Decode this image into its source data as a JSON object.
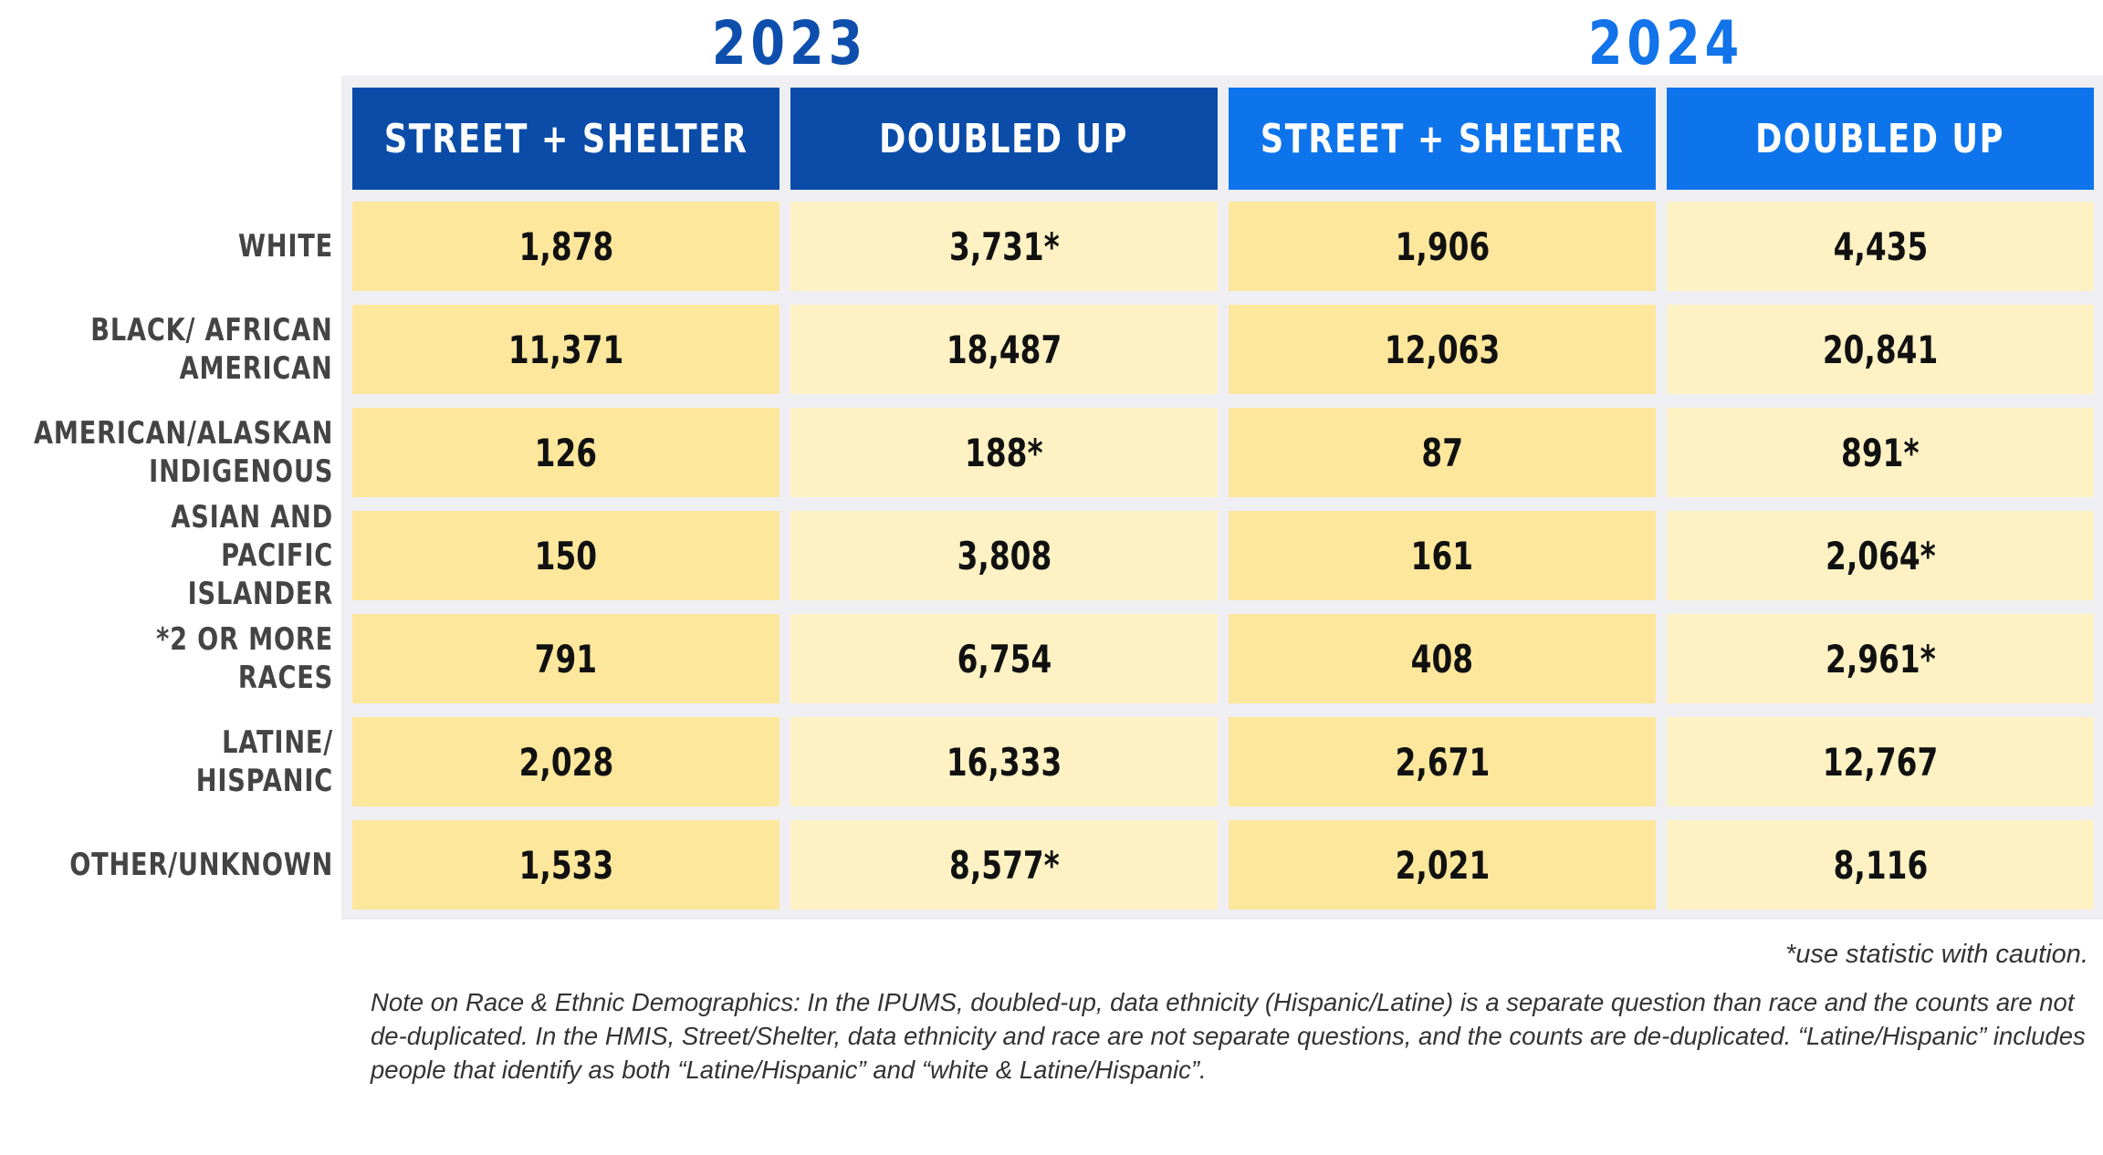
{
  "colors": {
    "year_2023": "#0e4fae",
    "year_2024": "#1273ea",
    "header_2023": "#0a4ca8",
    "header_2024": "#0e74ec",
    "cell_dark": "#fde79c",
    "cell_light": "#fef2c4",
    "grid_bg": "#efeff3"
  },
  "chart_data": {
    "type": "table",
    "groups": [
      {
        "year": "2023",
        "columns": [
          "STREET + SHELTER",
          "DOUBLED UP"
        ]
      },
      {
        "year": "2024",
        "columns": [
          "STREET + SHELTER",
          "DOUBLED UP"
        ]
      }
    ],
    "rows": [
      {
        "label": "WHITE",
        "values": [
          "1,878",
          "3,731*",
          "1,906",
          "4,435"
        ]
      },
      {
        "label": "BLACK/ AFRICAN\nAMERICAN",
        "values": [
          "11,371",
          "18,487",
          "12,063",
          "20,841"
        ]
      },
      {
        "label": "AMERICAN/ALASKAN\nINDIGENOUS",
        "values": [
          "126",
          "188*",
          "87",
          "891*"
        ]
      },
      {
        "label": "ASIAN AND PACIFIC\nISLANDER",
        "values": [
          "150",
          "3,808",
          "161",
          "2,064*"
        ]
      },
      {
        "label": "*2 OR MORE RACES",
        "values": [
          "791",
          "6,754",
          "408",
          "2,961*"
        ]
      },
      {
        "label": "LATINE/ HISPANIC",
        "values": [
          "2,028",
          "16,333",
          "2,671",
          "12,767"
        ]
      },
      {
        "label": "OTHER/UNKNOWN",
        "values": [
          "1,533",
          "8,577*",
          "2,021",
          "8,116"
        ]
      }
    ]
  },
  "footnotes": {
    "caution": "*use statistic with caution.",
    "note": "Note on Race & Ethnic Demographics: In the IPUMS, doubled-up, data ethnicity (Hispanic/Latine) is a separate question than race and the counts are not de-duplicated. In the HMIS, Street/Shelter, data ethnicity and race are not separate questions, and the counts are de-duplicated. “Latine/Hispanic” includes people that identify as both “Latine/Hispanic” and “white & Latine/Hispanic”."
  }
}
